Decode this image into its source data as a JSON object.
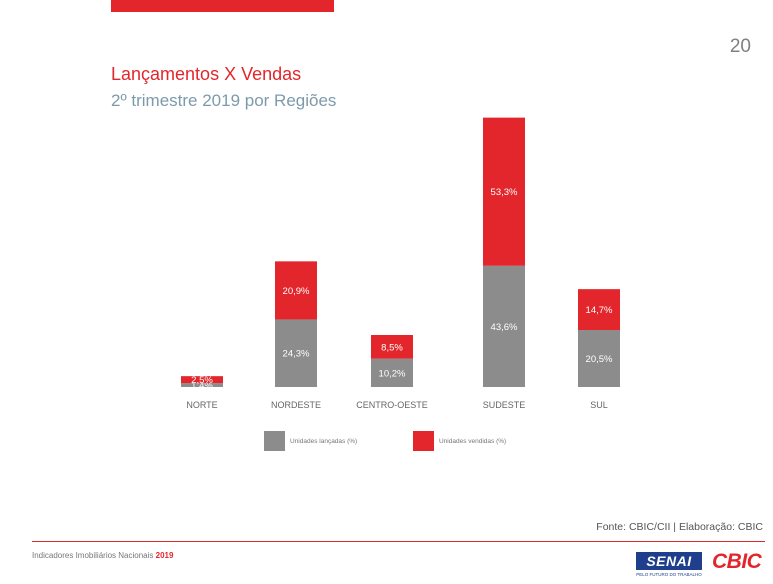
{
  "page_number": "20",
  "colors": {
    "accent": "#e3262b",
    "launched": "#8c8c8c",
    "sold": "#e3262b"
  },
  "chart_data": {
    "type": "bar",
    "stacked": true,
    "title": "Lançamentos X Vendas",
    "subtitle": "2º trimestre 2019 por Regiões",
    "categories": [
      "NORTE",
      "NORDESTE",
      "CENTRO-OESTE",
      "SUDESTE",
      "SUL"
    ],
    "series": [
      {
        "name": "Unidades lançadas (%)",
        "values": [
          1.4,
          24.3,
          10.2,
          43.6,
          20.5
        ],
        "labels": [
          "1,4%",
          "24,3%",
          "10,2%",
          "43,6%",
          "20,5%"
        ]
      },
      {
        "name": "Unidades vendidas (%)",
        "values": [
          2.5,
          20.9,
          8.5,
          53.3,
          14.7
        ],
        "labels": [
          "2,5%",
          "20,9%",
          "8,5%",
          "53,3%",
          "14,7%"
        ]
      }
    ],
    "legend_position": "bottom",
    "grid": false
  },
  "source": "Fonte: CBIC/CII | Elaboração: CBIC",
  "footer": {
    "text": "Indicadores Imobiliários Nacionais",
    "year": "2019"
  },
  "logos": {
    "senai": "SENAI",
    "senai_tagline": "PELO FUTURO DO TRABALHO",
    "cbic": "CBIC"
  }
}
